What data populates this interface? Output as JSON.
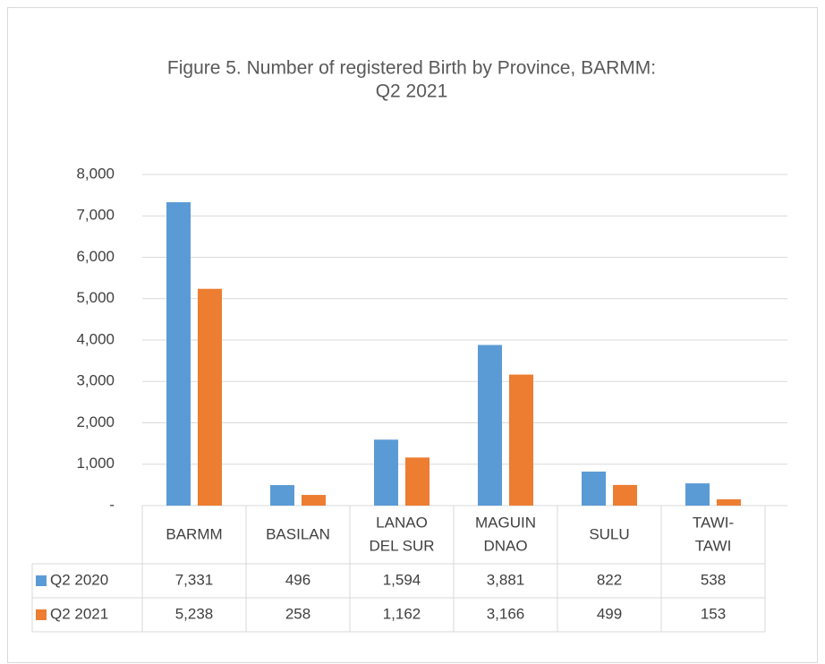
{
  "chart_data": {
    "type": "bar",
    "title": [
      "Figure 5. Number of registered Birth by Province, BARMM:",
      "Q2 2021"
    ],
    "categories": [
      [
        "BARMM"
      ],
      [
        "BASILAN"
      ],
      [
        "LANAO",
        "DEL SUR"
      ],
      [
        "MAGUIN",
        "DNAO"
      ],
      [
        "SULU"
      ],
      [
        "TAWI-",
        "TAWI"
      ]
    ],
    "series": [
      {
        "name": "Q2 2020",
        "color": "#5b9bd5",
        "values": [
          7331,
          496,
          1594,
          3881,
          822,
          538
        ],
        "value_labels": [
          "7,331",
          "496",
          "1,594",
          "3,881",
          "822",
          "538"
        ]
      },
      {
        "name": "Q2 2021",
        "color": "#ed7d31",
        "values": [
          5238,
          258,
          1162,
          3166,
          499,
          153
        ],
        "value_labels": [
          "5,238",
          "258",
          "1,162",
          "3,166",
          "499",
          "153"
        ]
      }
    ],
    "ylim": [
      0,
      8000
    ],
    "yticks": [
      {
        "value": 0,
        "label": "-"
      },
      {
        "value": 1000,
        "label": "1,000"
      },
      {
        "value": 2000,
        "label": "2,000"
      },
      {
        "value": 3000,
        "label": "3,000"
      },
      {
        "value": 4000,
        "label": "4,000"
      },
      {
        "value": 5000,
        "label": "5,000"
      },
      {
        "value": 6000,
        "label": "6,000"
      },
      {
        "value": 7000,
        "label": "7,000"
      },
      {
        "value": 8000,
        "label": "8,000"
      }
    ],
    "grid": true
  }
}
